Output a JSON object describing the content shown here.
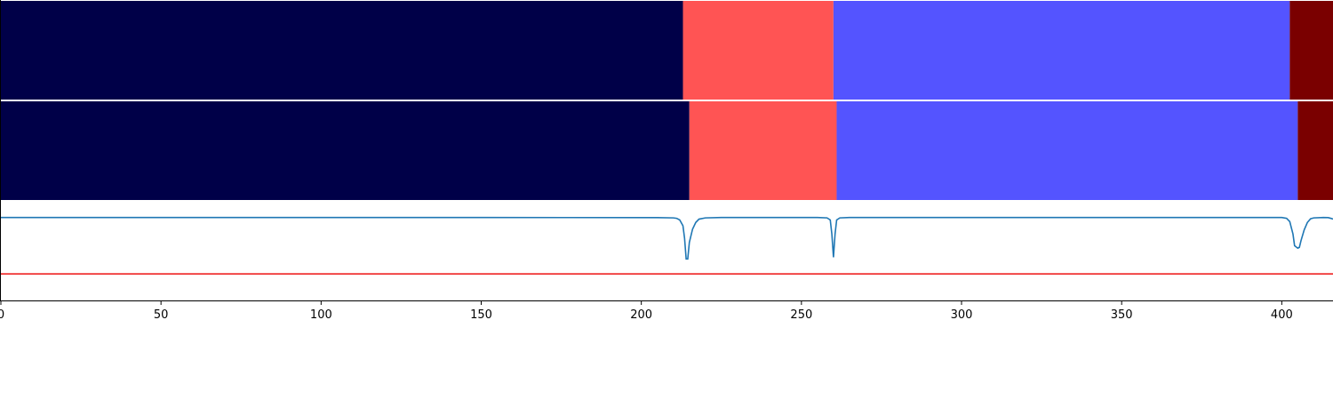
{
  "chart_data": {
    "type": "segmentation-timeline",
    "xlim": [
      0,
      416
    ],
    "xticks": [
      0,
      50,
      100,
      150,
      200,
      250,
      300,
      350,
      400
    ],
    "xtick_labels": [
      "0",
      "50",
      "100",
      "150",
      "200",
      "250",
      "300",
      "350",
      "400"
    ],
    "title": "",
    "xlabel": "",
    "ylabel": "",
    "grid": false,
    "rows": [
      {
        "segments": [
          {
            "start": 0,
            "end": 213,
            "color": "#000048"
          },
          {
            "start": 213,
            "end": 260,
            "color": "#ff5454"
          },
          {
            "start": 260,
            "end": 402.5,
            "color": "#5454ff"
          },
          {
            "start": 402.5,
            "end": 416,
            "color": "#7a0000"
          }
        ]
      },
      {
        "segments": [
          {
            "start": 0,
            "end": 215,
            "color": "#000048"
          },
          {
            "start": 215,
            "end": 261,
            "color": "#ff5454"
          },
          {
            "start": 261,
            "end": 405,
            "color": "#5454ff"
          },
          {
            "start": 405,
            "end": 416,
            "color": "#7a0000"
          }
        ]
      }
    ],
    "signal": {
      "color": "#1f77b4",
      "ylim": [
        0,
        1.2
      ],
      "points": [
        [
          0,
          1.0
        ],
        [
          150,
          1.0
        ],
        [
          205,
          0.998
        ],
        [
          210,
          0.995
        ],
        [
          211,
          0.99
        ],
        [
          212,
          0.97
        ],
        [
          213,
          0.9
        ],
        [
          213.5,
          0.75
        ],
        [
          214,
          0.5
        ],
        [
          214.5,
          0.5
        ],
        [
          215,
          0.7
        ],
        [
          216,
          0.86
        ],
        [
          217,
          0.94
        ],
        [
          218,
          0.98
        ],
        [
          220,
          0.995
        ],
        [
          225,
          1.0
        ],
        [
          255,
          1.0
        ],
        [
          258,
          0.995
        ],
        [
          259,
          0.97
        ],
        [
          259.5,
          0.8
        ],
        [
          260,
          0.52
        ],
        [
          260.5,
          0.8
        ],
        [
          261,
          0.97
        ],
        [
          262,
          0.995
        ],
        [
          265,
          1.0
        ],
        [
          400,
          1.0
        ],
        [
          401.5,
          0.99
        ],
        [
          402.5,
          0.95
        ],
        [
          403.5,
          0.8
        ],
        [
          404,
          0.66
        ],
        [
          405,
          0.63
        ],
        [
          405.5,
          0.64
        ],
        [
          406,
          0.72
        ],
        [
          407,
          0.85
        ],
        [
          408,
          0.94
        ],
        [
          409,
          0.985
        ],
        [
          410,
          0.995
        ],
        [
          413,
          1.0
        ],
        [
          414.5,
          0.998
        ],
        [
          415.5,
          0.988
        ],
        [
          416,
          0.98
        ]
      ]
    },
    "threshold": {
      "value": 0.32,
      "color": "#ee1111"
    }
  }
}
